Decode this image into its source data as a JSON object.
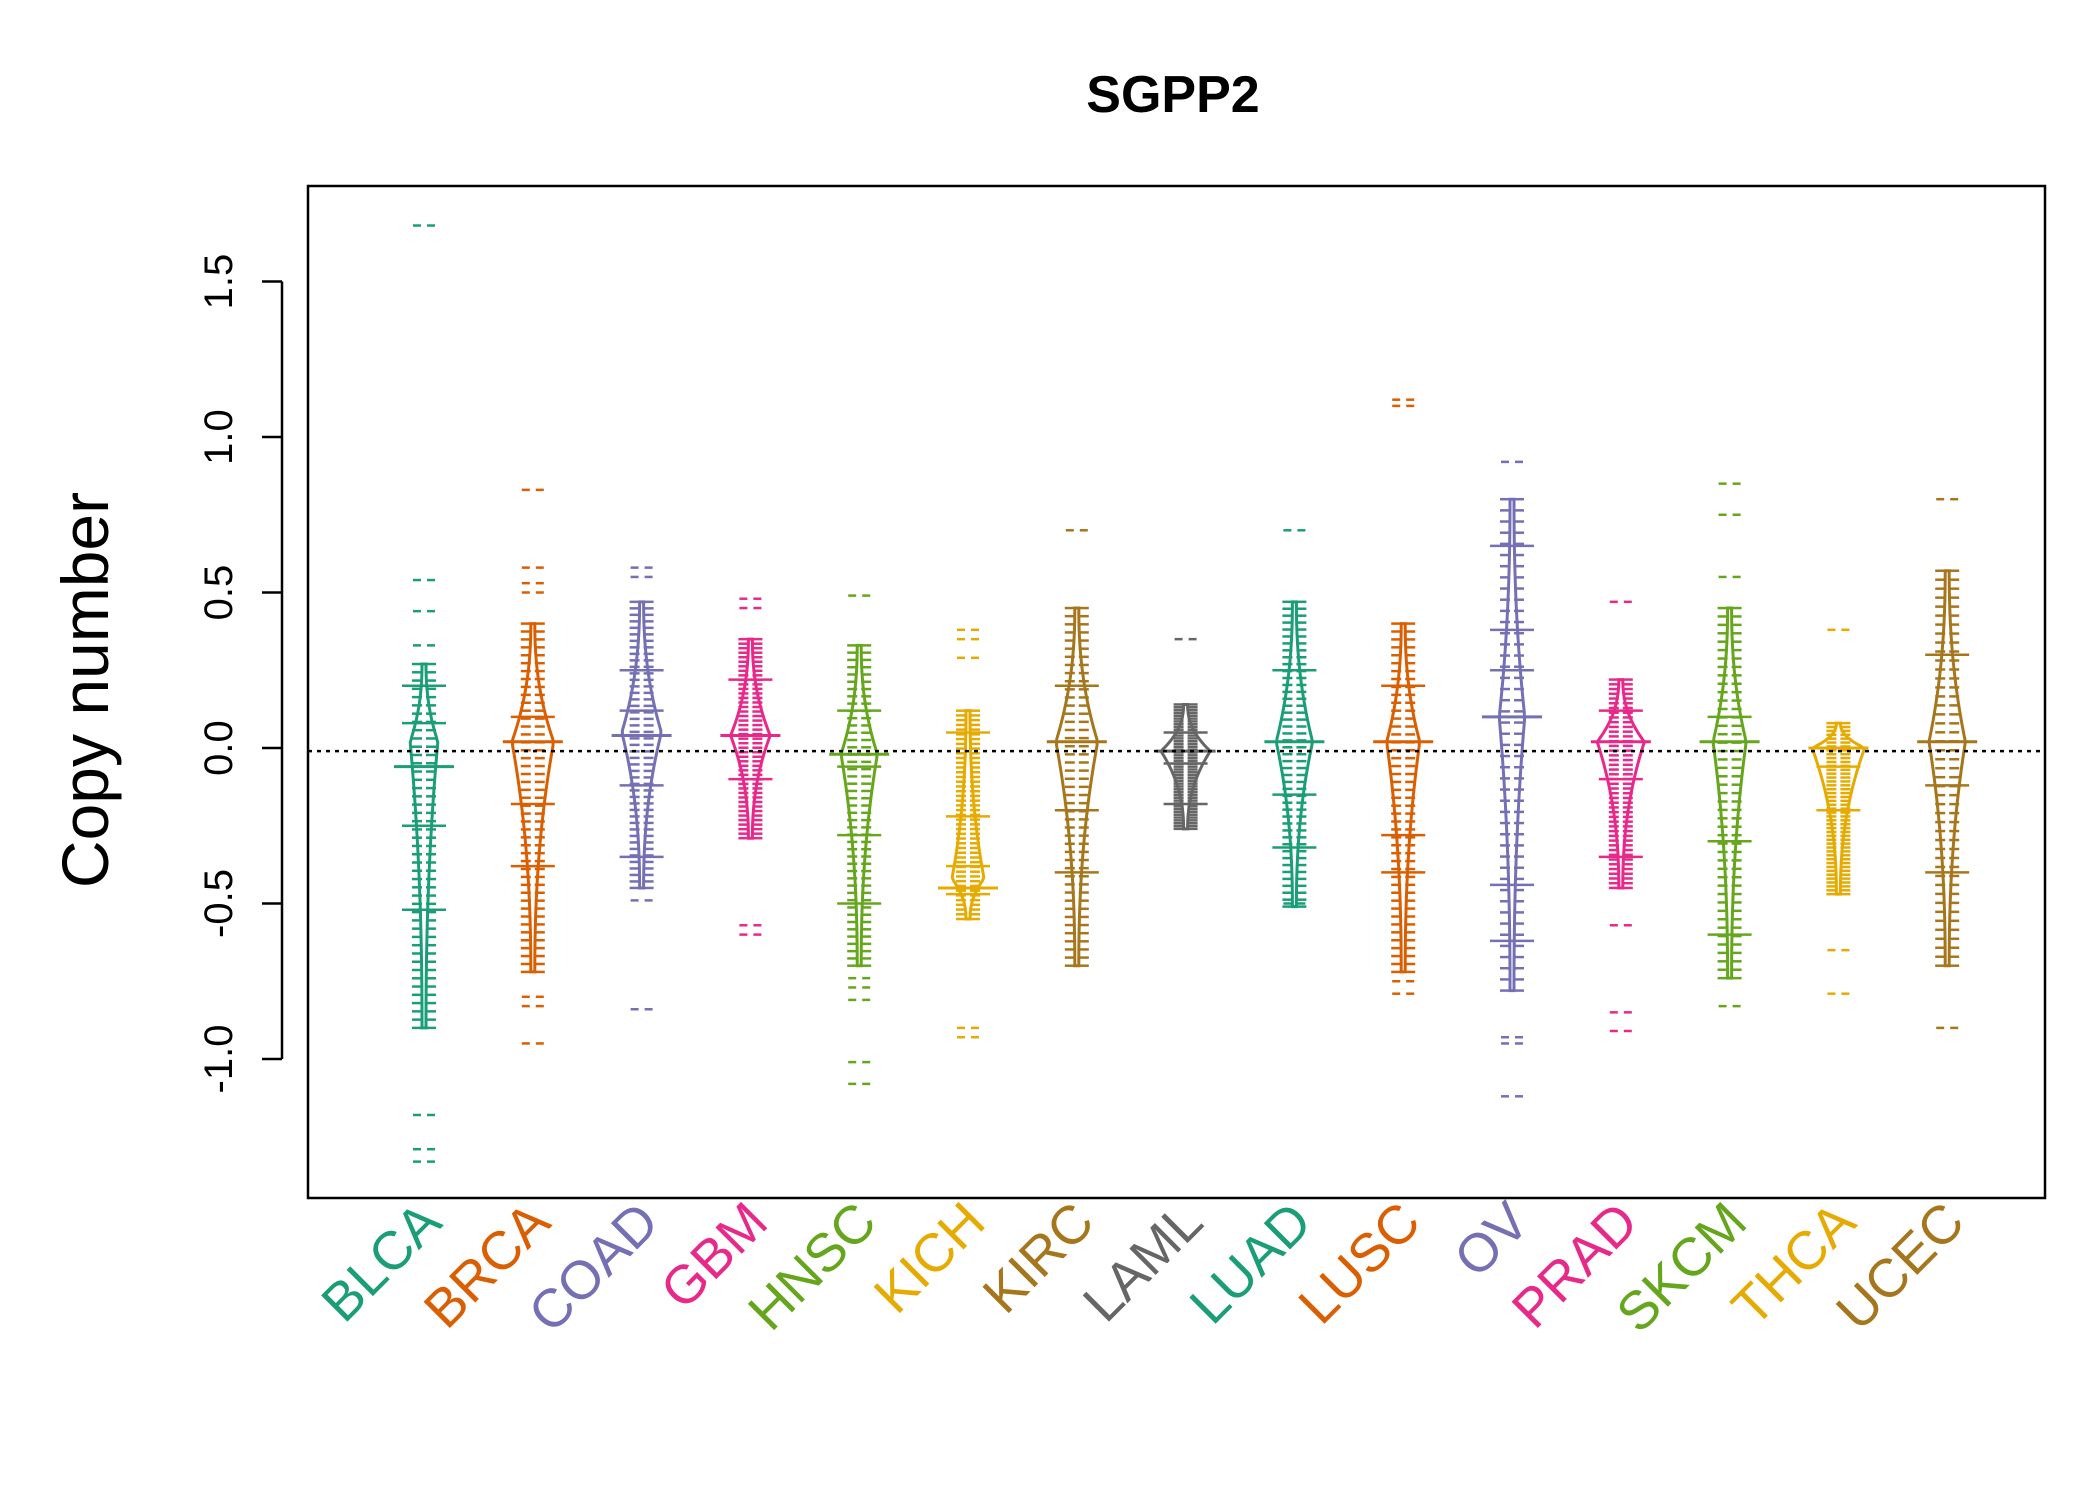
{
  "chart_data": {
    "type": "beanplot",
    "title": "SGPP2",
    "xlabel": "",
    "ylabel": "Copy number",
    "ylim": [
      -1.45,
      1.8
    ],
    "yticks": [
      -1.0,
      -0.5,
      0.0,
      0.5,
      1.0,
      1.5
    ],
    "ytick_labels": [
      "-1.0",
      "-0.5",
      "0.0",
      "0.5",
      "1.0",
      "1.5"
    ],
    "overall_reference_line": -0.01,
    "grid": false,
    "legend": "none",
    "categories": [
      {
        "name": "BLCA",
        "color": "#1B9E77",
        "median": -0.06,
        "center": 0.02,
        "max_width": 0.22,
        "range": [
          -0.9,
          0.27
        ],
        "outliers": [
          1.68,
          0.54,
          0.44,
          0.33,
          -1.18,
          -1.29,
          -1.33
        ],
        "quantile_marks": [
          0.2,
          0.08,
          -0.06,
          -0.25,
          -0.52
        ]
      },
      {
        "name": "BRCA",
        "color": "#D95F02",
        "median": 0.02,
        "center": 0.02,
        "max_width": 0.35,
        "range": [
          -0.72,
          0.4
        ],
        "outliers": [
          0.83,
          0.58,
          0.53,
          0.5,
          -0.8,
          -0.83,
          -0.95
        ],
        "quantile_marks": [
          0.1,
          0.02,
          -0.18,
          -0.38
        ]
      },
      {
        "name": "COAD",
        "color": "#7570B3",
        "median": 0.04,
        "center": 0.05,
        "max_width": 0.33,
        "range": [
          -0.45,
          0.47
        ],
        "outliers": [
          0.58,
          0.55,
          -0.49,
          -0.84
        ],
        "quantile_marks": [
          0.25,
          0.12,
          0.04,
          -0.12,
          -0.35
        ]
      },
      {
        "name": "GBM",
        "color": "#E7298A",
        "median": 0.04,
        "center": 0.04,
        "max_width": 0.33,
        "range": [
          -0.29,
          0.35
        ],
        "outliers": [
          0.48,
          0.45,
          -0.57,
          -0.6
        ],
        "quantile_marks": [
          0.22,
          0.04,
          -0.1
        ]
      },
      {
        "name": "HNSC",
        "color": "#66A61E",
        "median": -0.02,
        "center": -0.02,
        "max_width": 0.3,
        "range": [
          -0.7,
          0.33
        ],
        "outliers": [
          0.49,
          -0.74,
          -0.77,
          -0.81,
          -1.01,
          -1.08
        ],
        "quantile_marks": [
          0.12,
          -0.02,
          -0.06,
          -0.28,
          -0.5
        ]
      },
      {
        "name": "KICH",
        "color": "#E6AB02",
        "median": -0.45,
        "center": -0.42,
        "max_width": 0.26,
        "range": [
          -0.55,
          0.12
        ],
        "outliers": [
          0.38,
          0.35,
          0.29,
          -0.9,
          -0.93
        ],
        "quantile_marks": [
          0.05,
          -0.22,
          -0.38,
          -0.47
        ]
      },
      {
        "name": "KIRC",
        "color": "#A6761D",
        "median": 0.02,
        "center": 0.02,
        "max_width": 0.35,
        "range": [
          -0.7,
          0.45
        ],
        "outliers": [
          0.7
        ],
        "quantile_marks": [
          0.2,
          0.02,
          -0.2,
          -0.4
        ]
      },
      {
        "name": "LAML",
        "color": "#666666",
        "median": -0.01,
        "center": -0.01,
        "max_width": 0.42,
        "range": [
          -0.26,
          0.14
        ],
        "outliers": [
          0.35
        ],
        "quantile_marks": [
          0.05,
          -0.01,
          -0.05,
          -0.18
        ]
      },
      {
        "name": "LUAD",
        "color": "#1B9E77",
        "median": 0.02,
        "center": 0.02,
        "max_width": 0.3,
        "range": [
          -0.51,
          0.47
        ],
        "outliers": [
          0.7,
          -0.5
        ],
        "quantile_marks": [
          0.25,
          0.02,
          -0.15,
          -0.32
        ]
      },
      {
        "name": "LUSC",
        "color": "#D95F02",
        "median": 0.02,
        "center": 0.02,
        "max_width": 0.27,
        "range": [
          -0.72,
          0.4
        ],
        "outliers": [
          1.12,
          1.1,
          -0.75,
          -0.79
        ],
        "quantile_marks": [
          0.2,
          0.02,
          -0.28,
          -0.4
        ]
      },
      {
        "name": "OV",
        "color": "#7570B3",
        "median": 0.1,
        "center": 0.1,
        "max_width": 0.2,
        "range": [
          -0.78,
          0.8
        ],
        "outliers": [
          0.92,
          -0.93,
          -0.95,
          -1.12
        ],
        "quantile_marks": [
          0.65,
          0.38,
          0.25,
          0.1,
          -0.44,
          -0.62
        ]
      },
      {
        "name": "PRAD",
        "color": "#E7298A",
        "median": 0.02,
        "center": 0.02,
        "max_width": 0.4,
        "range": [
          -0.45,
          0.22
        ],
        "outliers": [
          0.47,
          -0.57,
          -0.85,
          -0.91
        ],
        "quantile_marks": [
          0.12,
          0.02,
          -0.1,
          -0.35
        ]
      },
      {
        "name": "SKCM",
        "color": "#66A61E",
        "median": 0.02,
        "center": 0.02,
        "max_width": 0.27,
        "range": [
          -0.74,
          0.45
        ],
        "outliers": [
          0.85,
          0.75,
          0.55,
          -0.83
        ],
        "quantile_marks": [
          0.1,
          0.02,
          -0.3,
          -0.6
        ]
      },
      {
        "name": "THCA",
        "color": "#E6AB02",
        "median": 0.0,
        "center": 0.0,
        "max_width": 0.45,
        "range": [
          -0.47,
          0.08
        ],
        "outliers": [
          0.38,
          -0.65,
          -0.79
        ],
        "quantile_marks": [
          0.0,
          -0.06,
          -0.2
        ]
      },
      {
        "name": "UCEC",
        "color": "#A6761D",
        "median": 0.02,
        "center": 0.02,
        "max_width": 0.3,
        "range": [
          -0.7,
          0.57
        ],
        "outliers": [
          0.8,
          -0.9
        ],
        "quantile_marks": [
          0.3,
          0.02,
          -0.12,
          -0.4
        ]
      }
    ]
  }
}
